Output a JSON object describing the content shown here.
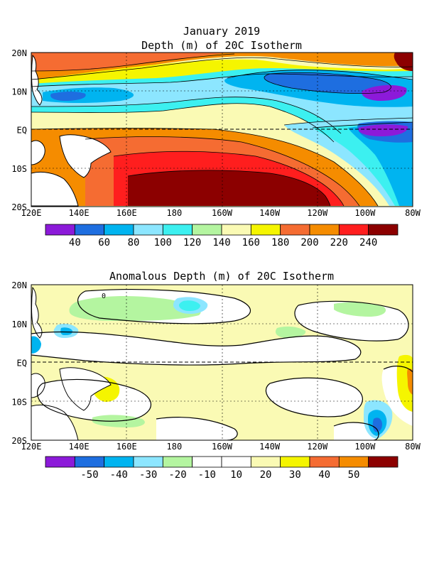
{
  "map1": {
    "title_line1": "January 2019",
    "title_line2": "Depth (m) of 20C Isotherm",
    "lat_labels": [
      "20N",
      "10N",
      "EQ",
      "10S",
      "20S"
    ],
    "lon_labels": [
      "120E",
      "140E",
      "160E",
      "180",
      "160W",
      "140W",
      "120W",
      "100W",
      "80W"
    ],
    "colorbar": {
      "colors": [
        "#8c1ad9",
        "#1e6ee0",
        "#00b4f0",
        "#8ce6ff",
        "#3cf0f0",
        "#b4f5a0",
        "#fafab4",
        "#f5f500",
        "#f56c32",
        "#f58c00",
        "#ff1e1e",
        "#8c0000"
      ],
      "labels": [
        "40",
        "60",
        "80",
        "100",
        "120",
        "140",
        "160",
        "180",
        "200",
        "220",
        "240"
      ]
    }
  },
  "map2": {
    "title": "Anomalous Depth (m) of 20C Isotherm",
    "lat_labels": [
      "20N",
      "10N",
      "EQ",
      "10S",
      "20S"
    ],
    "lon_labels": [
      "120E",
      "140E",
      "160E",
      "180",
      "160W",
      "140W",
      "120W",
      "100W",
      "80W"
    ],
    "contour_label": "0",
    "colorbar": {
      "colors": [
        "#8c1ad9",
        "#1e6ee0",
        "#00b4f0",
        "#8ce6ff",
        "#b4f5a0",
        "#ffffff",
        "#ffffff",
        "#fafab4",
        "#f5f500",
        "#f56c32",
        "#f58c00",
        "#8c0000"
      ],
      "labels": [
        "-50",
        "-40",
        "-30",
        "-20",
        "-10",
        "10",
        "20",
        "30",
        "40",
        "50"
      ]
    }
  }
}
